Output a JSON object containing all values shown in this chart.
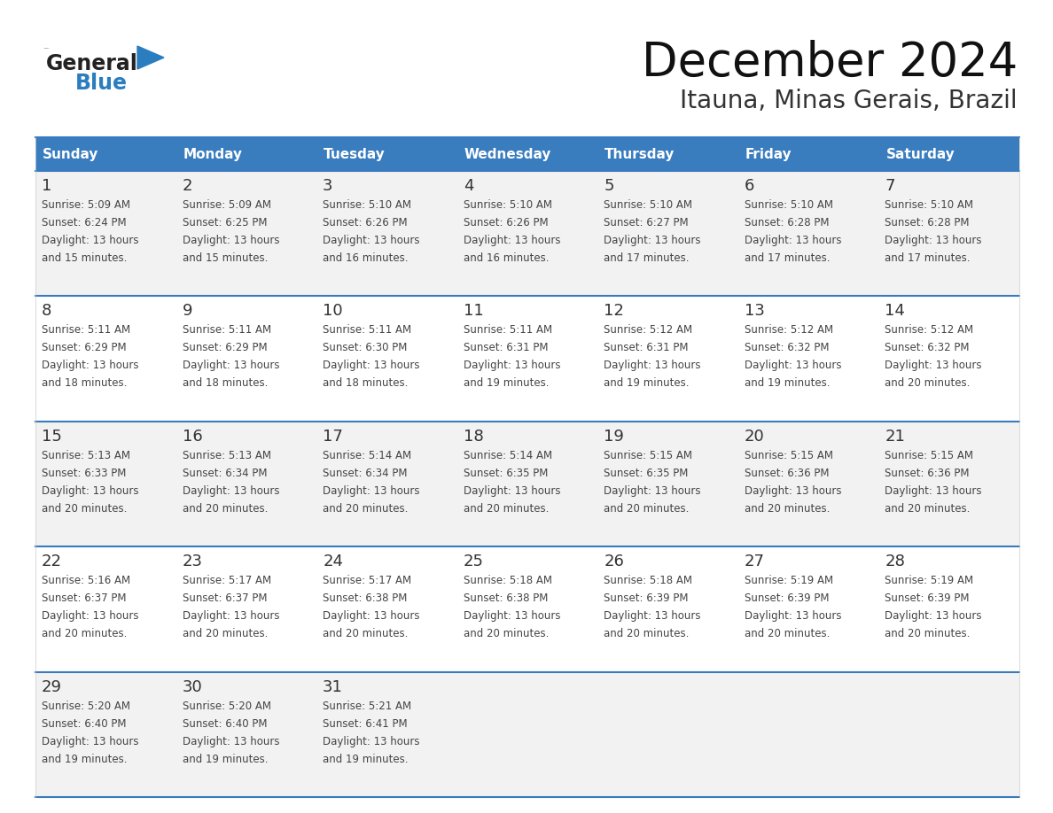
{
  "title": "December 2024",
  "subtitle": "Itauna, Minas Gerais, Brazil",
  "header_color": "#3a7dbf",
  "header_text_color": "#ffffff",
  "day_names": [
    "Sunday",
    "Monday",
    "Tuesday",
    "Wednesday",
    "Thursday",
    "Friday",
    "Saturday"
  ],
  "bg_color": "#ffffff",
  "cell_bg_even": "#f2f2f2",
  "cell_bg_odd": "#ffffff",
  "text_color": "#444444",
  "line_color": "#3a7abf",
  "logo_color1": "#222222",
  "logo_color2": "#2a7dbf",
  "logo_triangle_color": "#2a7dbf",
  "weeks": [
    [
      {
        "day": 1,
        "sunrise": "5:09 AM",
        "sunset": "6:24 PM",
        "daylight": "13 hours and 15 minutes"
      },
      {
        "day": 2,
        "sunrise": "5:09 AM",
        "sunset": "6:25 PM",
        "daylight": "13 hours and 15 minutes"
      },
      {
        "day": 3,
        "sunrise": "5:10 AM",
        "sunset": "6:26 PM",
        "daylight": "13 hours and 16 minutes"
      },
      {
        "day": 4,
        "sunrise": "5:10 AM",
        "sunset": "6:26 PM",
        "daylight": "13 hours and 16 minutes"
      },
      {
        "day": 5,
        "sunrise": "5:10 AM",
        "sunset": "6:27 PM",
        "daylight": "13 hours and 17 minutes"
      },
      {
        "day": 6,
        "sunrise": "5:10 AM",
        "sunset": "6:28 PM",
        "daylight": "13 hours and 17 minutes"
      },
      {
        "day": 7,
        "sunrise": "5:10 AM",
        "sunset": "6:28 PM",
        "daylight": "13 hours and 17 minutes"
      }
    ],
    [
      {
        "day": 8,
        "sunrise": "5:11 AM",
        "sunset": "6:29 PM",
        "daylight": "13 hours and 18 minutes"
      },
      {
        "day": 9,
        "sunrise": "5:11 AM",
        "sunset": "6:29 PM",
        "daylight": "13 hours and 18 minutes"
      },
      {
        "day": 10,
        "sunrise": "5:11 AM",
        "sunset": "6:30 PM",
        "daylight": "13 hours and 18 minutes"
      },
      {
        "day": 11,
        "sunrise": "5:11 AM",
        "sunset": "6:31 PM",
        "daylight": "13 hours and 19 minutes"
      },
      {
        "day": 12,
        "sunrise": "5:12 AM",
        "sunset": "6:31 PM",
        "daylight": "13 hours and 19 minutes"
      },
      {
        "day": 13,
        "sunrise": "5:12 AM",
        "sunset": "6:32 PM",
        "daylight": "13 hours and 19 minutes"
      },
      {
        "day": 14,
        "sunrise": "5:12 AM",
        "sunset": "6:32 PM",
        "daylight": "13 hours and 20 minutes"
      }
    ],
    [
      {
        "day": 15,
        "sunrise": "5:13 AM",
        "sunset": "6:33 PM",
        "daylight": "13 hours and 20 minutes"
      },
      {
        "day": 16,
        "sunrise": "5:13 AM",
        "sunset": "6:34 PM",
        "daylight": "13 hours and 20 minutes"
      },
      {
        "day": 17,
        "sunrise": "5:14 AM",
        "sunset": "6:34 PM",
        "daylight": "13 hours and 20 minutes"
      },
      {
        "day": 18,
        "sunrise": "5:14 AM",
        "sunset": "6:35 PM",
        "daylight": "13 hours and 20 minutes"
      },
      {
        "day": 19,
        "sunrise": "5:15 AM",
        "sunset": "6:35 PM",
        "daylight": "13 hours and 20 minutes"
      },
      {
        "day": 20,
        "sunrise": "5:15 AM",
        "sunset": "6:36 PM",
        "daylight": "13 hours and 20 minutes"
      },
      {
        "day": 21,
        "sunrise": "5:15 AM",
        "sunset": "6:36 PM",
        "daylight": "13 hours and 20 minutes"
      }
    ],
    [
      {
        "day": 22,
        "sunrise": "5:16 AM",
        "sunset": "6:37 PM",
        "daylight": "13 hours and 20 minutes"
      },
      {
        "day": 23,
        "sunrise": "5:17 AM",
        "sunset": "6:37 PM",
        "daylight": "13 hours and 20 minutes"
      },
      {
        "day": 24,
        "sunrise": "5:17 AM",
        "sunset": "6:38 PM",
        "daylight": "13 hours and 20 minutes"
      },
      {
        "day": 25,
        "sunrise": "5:18 AM",
        "sunset": "6:38 PM",
        "daylight": "13 hours and 20 minutes"
      },
      {
        "day": 26,
        "sunrise": "5:18 AM",
        "sunset": "6:39 PM",
        "daylight": "13 hours and 20 minutes"
      },
      {
        "day": 27,
        "sunrise": "5:19 AM",
        "sunset": "6:39 PM",
        "daylight": "13 hours and 20 minutes"
      },
      {
        "day": 28,
        "sunrise": "5:19 AM",
        "sunset": "6:39 PM",
        "daylight": "13 hours and 20 minutes"
      }
    ],
    [
      {
        "day": 29,
        "sunrise": "5:20 AM",
        "sunset": "6:40 PM",
        "daylight": "13 hours and 19 minutes"
      },
      {
        "day": 30,
        "sunrise": "5:20 AM",
        "sunset": "6:40 PM",
        "daylight": "13 hours and 19 minutes"
      },
      {
        "day": 31,
        "sunrise": "5:21 AM",
        "sunset": "6:41 PM",
        "daylight": "13 hours and 19 minutes"
      },
      null,
      null,
      null,
      null
    ]
  ]
}
